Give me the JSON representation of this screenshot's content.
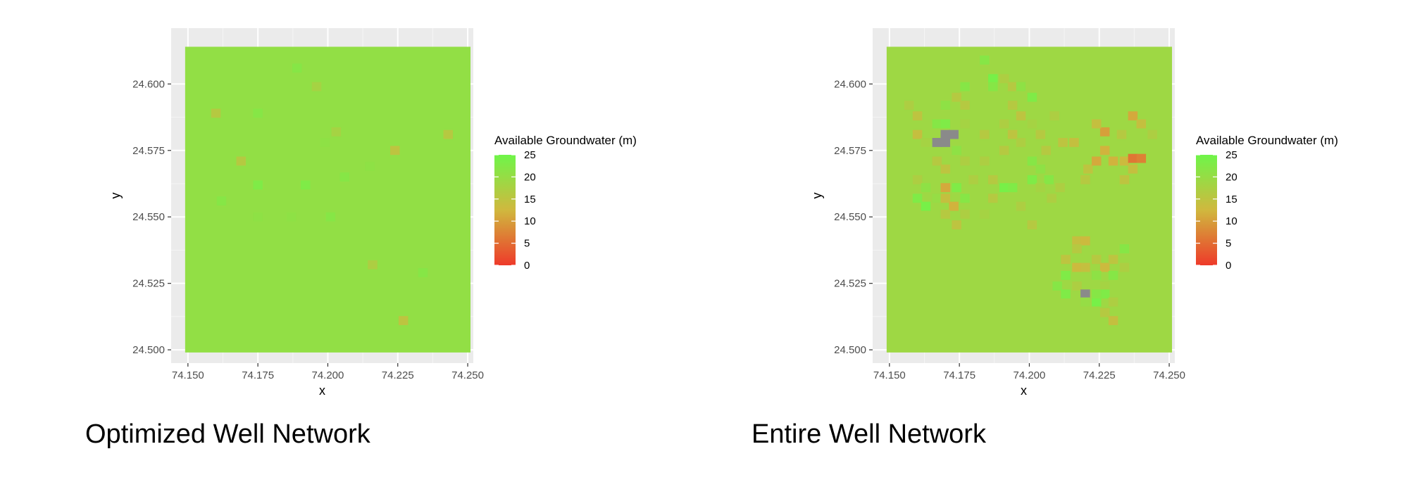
{
  "captions": [
    "Optimized Well Network",
    "Entire Well Network"
  ],
  "chart_data": [
    {
      "type": "heatmap",
      "title": "",
      "xlabel": "x",
      "ylabel": "y",
      "xlim": [
        74.144,
        74.252
      ],
      "ylim": [
        24.495,
        24.621
      ],
      "x_ticks": [
        74.15,
        74.175,
        74.2,
        74.225,
        74.25
      ],
      "x_tick_labels": [
        "74.150",
        "74.175",
        "74.200",
        "74.225",
        "74.250"
      ],
      "y_ticks": [
        24.5,
        24.525,
        24.55,
        24.575,
        24.6
      ],
      "y_tick_labels": [
        "24.500",
        "24.525",
        "24.550",
        "24.575",
        "24.600"
      ],
      "grid": true,
      "panel_background": "#ebebeb",
      "extent": {
        "x": [
          74.149,
          74.251
        ],
        "y": [
          24.499,
          24.614
        ]
      },
      "cell_size": 0.0034,
      "background_value": 20.5,
      "cells": [
        {
          "x": 74.189,
          "y": 24.606,
          "v": 22
        },
        {
          "x": 74.196,
          "y": 24.599,
          "v": 18
        },
        {
          "x": 74.16,
          "y": 24.589,
          "v": 16
        },
        {
          "x": 74.175,
          "y": 24.589,
          "v": 22
        },
        {
          "x": 74.199,
          "y": 24.578,
          "v": 21
        },
        {
          "x": 74.203,
          "y": 24.582,
          "v": 18
        },
        {
          "x": 74.224,
          "y": 24.575,
          "v": 15
        },
        {
          "x": 74.243,
          "y": 24.581,
          "v": 16
        },
        {
          "x": 74.169,
          "y": 24.571,
          "v": 16
        },
        {
          "x": 74.175,
          "y": 24.562,
          "v": 23
        },
        {
          "x": 74.192,
          "y": 24.562,
          "v": 23
        },
        {
          "x": 74.206,
          "y": 24.565,
          "v": 22
        },
        {
          "x": 74.215,
          "y": 24.569,
          "v": 21
        },
        {
          "x": 74.162,
          "y": 24.556,
          "v": 22
        },
        {
          "x": 74.175,
          "y": 24.55,
          "v": 21
        },
        {
          "x": 74.187,
          "y": 24.55,
          "v": 21
        },
        {
          "x": 74.201,
          "y": 24.55,
          "v": 22
        },
        {
          "x": 74.216,
          "y": 24.532,
          "v": 17
        },
        {
          "x": 74.234,
          "y": 24.529,
          "v": 22
        },
        {
          "x": 74.227,
          "y": 24.511,
          "v": 15
        }
      ],
      "legend": {
        "title": "Available Groundwater (m)",
        "position": "right",
        "min": 0,
        "max": 25,
        "breaks": [
          0,
          5,
          10,
          15,
          20,
          25
        ],
        "break_labels": [
          "0",
          "5",
          "10",
          "15",
          "20",
          "25"
        ],
        "colors": {
          "low": "#ee3a2a",
          "mid": "#d0b83e",
          "high": "#6ff549"
        }
      }
    },
    {
      "type": "heatmap",
      "title": "",
      "xlabel": "x",
      "ylabel": "y",
      "xlim": [
        74.144,
        74.252
      ],
      "ylim": [
        24.495,
        24.621
      ],
      "x_ticks": [
        74.15,
        74.175,
        74.2,
        74.225,
        74.25
      ],
      "x_tick_labels": [
        "74.150",
        "74.175",
        "74.200",
        "74.225",
        "74.250"
      ],
      "y_ticks": [
        24.5,
        24.525,
        24.55,
        24.575,
        24.6
      ],
      "y_tick_labels": [
        "24.500",
        "24.525",
        "24.550",
        "24.575",
        "24.600"
      ],
      "grid": true,
      "panel_background": "#ebebeb",
      "extent": {
        "x": [
          74.149,
          74.251
        ],
        "y": [
          24.499,
          24.614
        ]
      },
      "cell_size": 0.0034,
      "background_value": 19,
      "na_color": "#8a8a8a",
      "cells": [
        {
          "x": 74.184,
          "y": 24.609,
          "v": 22
        },
        {
          "x": 74.187,
          "y": 24.602,
          "v": 24
        },
        {
          "x": 74.187,
          "y": 24.599,
          "v": 22
        },
        {
          "x": 74.191,
          "y": 24.602,
          "v": 17
        },
        {
          "x": 74.194,
          "y": 24.599,
          "v": 16
        },
        {
          "x": 74.197,
          "y": 24.599,
          "v": 21
        },
        {
          "x": 74.201,
          "y": 24.595,
          "v": 23
        },
        {
          "x": 74.194,
          "y": 24.592,
          "v": 16
        },
        {
          "x": 74.197,
          "y": 24.588,
          "v": 15
        },
        {
          "x": 74.201,
          "y": 24.585,
          "v": 18
        },
        {
          "x": 74.191,
          "y": 24.585,
          "v": 17
        },
        {
          "x": 74.194,
          "y": 24.581,
          "v": 15
        },
        {
          "x": 74.204,
          "y": 24.581,
          "v": 16
        },
        {
          "x": 74.197,
          "y": 24.578,
          "v": 17
        },
        {
          "x": 74.209,
          "y": 24.588,
          "v": 17
        },
        {
          "x": 74.212,
          "y": 24.578,
          "v": 15
        },
        {
          "x": 74.216,
          "y": 24.578,
          "v": 14
        },
        {
          "x": 74.206,
          "y": 24.575,
          "v": 16
        },
        {
          "x": 74.201,
          "y": 24.571,
          "v": 22
        },
        {
          "x": 74.204,
          "y": 24.568,
          "v": 21
        },
        {
          "x": 74.201,
          "y": 24.564,
          "v": 23
        },
        {
          "x": 74.207,
          "y": 24.564,
          "v": 22
        },
        {
          "x": 74.204,
          "y": 24.561,
          "v": 18
        },
        {
          "x": 74.211,
          "y": 24.561,
          "v": 17
        },
        {
          "x": 74.221,
          "y": 24.568,
          "v": 15
        },
        {
          "x": 74.224,
          "y": 24.571,
          "v": 11
        },
        {
          "x": 74.227,
          "y": 24.575,
          "v": 12
        },
        {
          "x": 74.227,
          "y": 24.582,
          "v": 10
        },
        {
          "x": 74.224,
          "y": 24.585,
          "v": 14
        },
        {
          "x": 74.23,
          "y": 24.571,
          "v": 12
        },
        {
          "x": 74.234,
          "y": 24.571,
          "v": 13
        },
        {
          "x": 74.237,
          "y": 24.568,
          "v": 14
        },
        {
          "x": 74.237,
          "y": 24.572,
          "v": 6
        },
        {
          "x": 74.24,
          "y": 24.572,
          "v": 7
        },
        {
          "x": 74.237,
          "y": 24.588,
          "v": 11
        },
        {
          "x": 74.24,
          "y": 24.585,
          "v": 14
        },
        {
          "x": 74.233,
          "y": 24.581,
          "v": 16
        },
        {
          "x": 74.244,
          "y": 24.581,
          "v": 17
        },
        {
          "x": 74.234,
          "y": 24.564,
          "v": 15
        },
        {
          "x": 74.22,
          "y": 24.564,
          "v": 16
        },
        {
          "x": 74.157,
          "y": 24.592,
          "v": 17
        },
        {
          "x": 74.16,
          "y": 24.588,
          "v": 15
        },
        {
          "x": 74.16,
          "y": 24.581,
          "v": 14
        },
        {
          "x": 74.163,
          "y": 24.578,
          "v": 18
        },
        {
          "x": 74.167,
          "y": 24.585,
          "v": 22
        },
        {
          "x": 74.17,
          "y": 24.585,
          "v": 23
        },
        {
          "x": 74.17,
          "y": 24.592,
          "v": 21
        },
        {
          "x": 74.174,
          "y": 24.595,
          "v": 16
        },
        {
          "x": 74.177,
          "y": 24.599,
          "v": 22
        },
        {
          "x": 74.177,
          "y": 24.592,
          "v": 16
        },
        {
          "x": 74.177,
          "y": 24.585,
          "v": 18
        },
        {
          "x": 74.167,
          "y": 24.578,
          "v": null
        },
        {
          "x": 74.17,
          "y": 24.578,
          "v": null
        },
        {
          "x": 74.17,
          "y": 24.581,
          "v": null
        },
        {
          "x": 74.173,
          "y": 24.581,
          "v": null
        },
        {
          "x": 74.174,
          "y": 24.575,
          "v": 21
        },
        {
          "x": 74.167,
          "y": 24.571,
          "v": 16
        },
        {
          "x": 74.17,
          "y": 24.568,
          "v": 15
        },
        {
          "x": 74.177,
          "y": 24.571,
          "v": 17
        },
        {
          "x": 74.16,
          "y": 24.564,
          "v": 17
        },
        {
          "x": 74.163,
          "y": 24.561,
          "v": 21
        },
        {
          "x": 74.16,
          "y": 24.557,
          "v": 23
        },
        {
          "x": 74.163,
          "y": 24.554,
          "v": 24
        },
        {
          "x": 74.167,
          "y": 24.557,
          "v": 20
        },
        {
          "x": 74.17,
          "y": 24.561,
          "v": 11
        },
        {
          "x": 74.17,
          "y": 24.557,
          "v": 14
        },
        {
          "x": 74.173,
          "y": 24.554,
          "v": 12
        },
        {
          "x": 74.17,
          "y": 24.551,
          "v": 16
        },
        {
          "x": 74.174,
          "y": 24.561,
          "v": 23
        },
        {
          "x": 74.177,
          "y": 24.557,
          "v": 22
        },
        {
          "x": 74.177,
          "y": 24.551,
          "v": 17
        },
        {
          "x": 74.174,
          "y": 24.547,
          "v": 15
        },
        {
          "x": 74.184,
          "y": 24.571,
          "v": 17
        },
        {
          "x": 74.187,
          "y": 24.564,
          "v": 16
        },
        {
          "x": 74.191,
          "y": 24.561,
          "v": 24
        },
        {
          "x": 74.194,
          "y": 24.561,
          "v": 23
        },
        {
          "x": 74.187,
          "y": 24.557,
          "v": 16
        },
        {
          "x": 74.184,
          "y": 24.551,
          "v": 18
        },
        {
          "x": 74.197,
          "y": 24.554,
          "v": 17
        },
        {
          "x": 74.201,
          "y": 24.547,
          "v": 16
        },
        {
          "x": 74.208,
          "y": 24.557,
          "v": 17
        },
        {
          "x": 74.191,
          "y": 24.575,
          "v": 16
        },
        {
          "x": 74.184,
          "y": 24.581,
          "v": 16
        },
        {
          "x": 74.18,
          "y": 24.564,
          "v": 17
        },
        {
          "x": 74.217,
          "y": 24.541,
          "v": 14
        },
        {
          "x": 74.22,
          "y": 24.541,
          "v": 13
        },
        {
          "x": 74.217,
          "y": 24.538,
          "v": 16
        },
        {
          "x": 74.213,
          "y": 24.534,
          "v": 15
        },
        {
          "x": 74.217,
          "y": 24.531,
          "v": 13
        },
        {
          "x": 74.22,
          "y": 24.531,
          "v": 14
        },
        {
          "x": 74.224,
          "y": 24.534,
          "v": 16
        },
        {
          "x": 74.227,
          "y": 24.531,
          "v": 13
        },
        {
          "x": 74.23,
          "y": 24.534,
          "v": 15
        },
        {
          "x": 74.23,
          "y": 24.528,
          "v": 22
        },
        {
          "x": 74.234,
          "y": 24.531,
          "v": 17
        },
        {
          "x": 74.234,
          "y": 24.538,
          "v": 22
        },
        {
          "x": 74.224,
          "y": 24.528,
          "v": 21
        },
        {
          "x": 74.227,
          "y": 24.524,
          "v": 18
        },
        {
          "x": 74.213,
          "y": 24.528,
          "v": 23
        },
        {
          "x": 74.21,
          "y": 24.524,
          "v": 22
        },
        {
          "x": 74.213,
          "y": 24.521,
          "v": 23
        },
        {
          "x": 74.217,
          "y": 24.524,
          "v": 17
        },
        {
          "x": 74.22,
          "y": 24.521,
          "v": null
        },
        {
          "x": 74.224,
          "y": 24.518,
          "v": 24
        },
        {
          "x": 74.227,
          "y": 24.521,
          "v": 23
        },
        {
          "x": 74.224,
          "y": 24.521,
          "v": 22
        },
        {
          "x": 74.22,
          "y": 24.518,
          "v": 20
        },
        {
          "x": 74.227,
          "y": 24.514,
          "v": 16
        },
        {
          "x": 74.23,
          "y": 24.511,
          "v": 14
        },
        {
          "x": 74.23,
          "y": 24.518,
          "v": 17
        }
      ],
      "legend": {
        "title": "Available Groundwater (m)",
        "position": "right",
        "min": 0,
        "max": 25,
        "breaks": [
          0,
          5,
          10,
          15,
          20,
          25
        ],
        "break_labels": [
          "0",
          "5",
          "10",
          "15",
          "20",
          "25"
        ],
        "colors": {
          "low": "#ee3a2a",
          "mid": "#d0b83e",
          "high": "#6ff549"
        }
      }
    }
  ]
}
